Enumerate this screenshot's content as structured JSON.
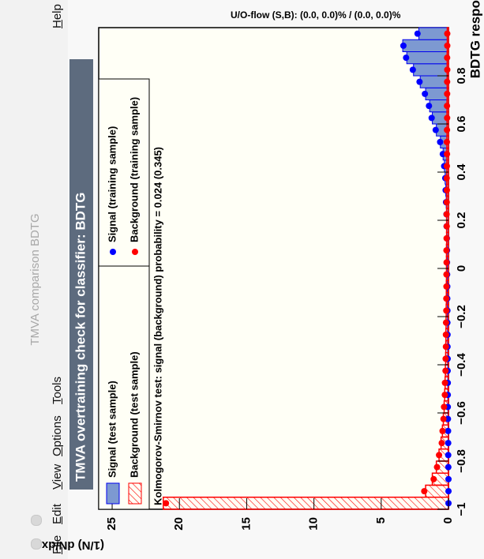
{
  "window": {
    "title": "TMVA comparison BDTG",
    "menu": [
      "File",
      "Edit",
      "View",
      "Options",
      "Tools"
    ],
    "help": "Help"
  },
  "chart_data": {
    "type": "histogram",
    "title": "TMVA overtraining check for classifier: BDTG",
    "xlabel": "BDTG response",
    "ylabel": "(1/N) dN/dx",
    "ks_text": "Kolmogorov-Smirnov test: signal (background) probability = 0.024 (0.345)",
    "overflow_text": "U/O-flow (S,B): (0.0, 0.0)% / (0.0, 0.0)%",
    "bins": [
      -1,
      -0.95,
      -0.9,
      -0.85,
      -0.8,
      -0.75,
      -0.7,
      -0.65,
      -0.6,
      -0.55,
      -0.5,
      -0.45,
      -0.4,
      -0.35,
      -0.3,
      -0.25,
      -0.2,
      -0.15,
      -0.1,
      -0.05,
      0,
      0.05,
      0.1,
      0.15,
      0.2,
      0.25,
      0.3,
      0.35,
      0.4,
      0.45,
      0.5,
      0.55,
      0.6,
      0.65,
      0.7,
      0.75,
      0.8,
      0.85,
      0.9,
      0.95,
      1
    ],
    "series": [
      {
        "name": "Signal (test sample)",
        "color": "#0000ee",
        "style": "fill",
        "values": [
          0,
          0,
          0,
          0,
          0.02,
          0.03,
          0.03,
          0.04,
          0.04,
          0.05,
          0.05,
          0.05,
          0.06,
          0.06,
          0.07,
          0.07,
          0.08,
          0.08,
          0.09,
          0.1,
          0.1,
          0.11,
          0.12,
          0.13,
          0.15,
          0.17,
          0.2,
          0.25,
          0.3,
          0.4,
          0.6,
          0.9,
          1.2,
          1.4,
          1.7,
          2.1,
          2.6,
          3.1,
          3.4,
          2.2
        ]
      },
      {
        "name": "Background (test sample)",
        "color": "#ff0000",
        "style": "hatch",
        "values": [
          21.2,
          1.7,
          1.2,
          0.9,
          0.7,
          0.55,
          0.45,
          0.38,
          0.32,
          0.28,
          0.25,
          0.23,
          0.21,
          0.2,
          0.19,
          0.18,
          0.17,
          0.16,
          0.16,
          0.15,
          0.15,
          0.15,
          0.14,
          0.14,
          0.14,
          0.13,
          0.13,
          0.13,
          0.12,
          0.12,
          0.12,
          0.11,
          0.11,
          0.11,
          0.1,
          0.1,
          0.1,
          0.1,
          0.09,
          0.09
        ]
      },
      {
        "name": "Signal (training sample)",
        "color": "#0000ff",
        "style": "dots",
        "values": [
          0,
          0,
          0,
          0.01,
          0.02,
          0.02,
          0.03,
          0.04,
          0.05,
          0.05,
          0.05,
          0.06,
          0.06,
          0.07,
          0.07,
          0.08,
          0.08,
          0.09,
          0.09,
          0.1,
          0.11,
          0.11,
          0.12,
          0.14,
          0.15,
          0.18,
          0.21,
          0.24,
          0.32,
          0.42,
          0.62,
          0.95,
          1.25,
          1.45,
          1.75,
          2.15,
          2.65,
          3.15,
          3.35,
          2.3
        ]
      },
      {
        "name": "Background (training sample)",
        "color": "#ff0000",
        "style": "dots",
        "values": [
          21.0,
          1.8,
          1.1,
          0.85,
          0.7,
          0.5,
          0.44,
          0.37,
          0.33,
          0.27,
          0.26,
          0.22,
          0.21,
          0.19,
          0.19,
          0.18,
          0.16,
          0.16,
          0.15,
          0.15,
          0.14,
          0.15,
          0.14,
          0.13,
          0.14,
          0.13,
          0.12,
          0.13,
          0.12,
          0.11,
          0.12,
          0.11,
          0.1,
          0.11,
          0.1,
          0.1,
          0.09,
          0.1,
          0.09,
          0.09
        ]
      }
    ],
    "xlim": [
      -1,
      1
    ],
    "xticks": [
      {
        "value": -1,
        "label": "−1"
      },
      {
        "value": -0.8,
        "label": "−0.8"
      },
      {
        "value": -0.6,
        "label": "−0.6"
      },
      {
        "value": -0.4,
        "label": "−0.4"
      },
      {
        "value": -0.2,
        "label": "−0.2"
      },
      0,
      0.2,
      0.4,
      0.6,
      0.8
    ],
    "ylim": [
      0,
      26
    ],
    "yticks": [
      0,
      5,
      10,
      15,
      20,
      25
    ]
  }
}
